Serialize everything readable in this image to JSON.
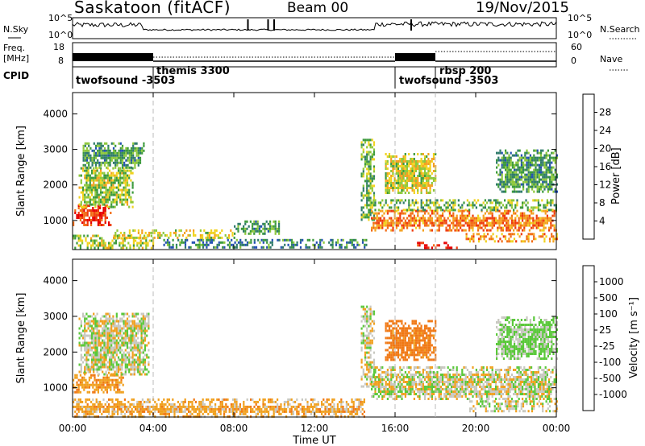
{
  "header": {
    "station": "Saskatoon (fitACF)",
    "beam": "Beam 00",
    "date": "19/Nov/2015"
  },
  "side_labels": {
    "nsky": "N.Sky",
    "freq": "Freq.",
    "freq_unit": "[MHz]",
    "cpid": "CPID",
    "nsearch": "N.Search",
    "nave": "Nave"
  },
  "noise_axis": {
    "left_top": "10^5",
    "left_bottom": "10^0",
    "right_top": "10^5",
    "right_bottom": "10^0"
  },
  "freq_axis": {
    "left_top": "18",
    "left_bottom": "8",
    "right_top": "60",
    "right_bottom": "0"
  },
  "modes": [
    {
      "label": "twofsound -3503",
      "start_h": 0
    },
    {
      "label": "themis 3300",
      "start_h": 4
    },
    {
      "label": "twofsound -3503",
      "start_h": 16
    },
    {
      "label": "rbsp 200",
      "start_h": 18
    }
  ],
  "x_axis": {
    "label": "Time UT",
    "ticks": [
      "00:00",
      "04:00",
      "08:00",
      "12:00",
      "16:00",
      "20:00",
      "00:00"
    ]
  },
  "power_panel": {
    "ylabel": "Slant Range [km]",
    "yticks": [
      "4000",
      "3000",
      "2000",
      "1000"
    ],
    "colorbar_label": "Power [dB]",
    "colorbar_ticks": [
      "28",
      "24",
      "20",
      "16",
      "12",
      "8",
      "4"
    ],
    "colors": [
      "#0a14e6",
      "#2350b4",
      "#2f7a6a",
      "#3c9a3c",
      "#8ec83a",
      "#f0d21e",
      "#f4a01e",
      "#f26c14",
      "#ee3a0c",
      "#e60000"
    ]
  },
  "velocity_panel": {
    "ylabel": "Slant Range [km]",
    "yticks": [
      "4000",
      "3000",
      "2000",
      "1000"
    ],
    "colorbar_label": "Velocity [m s⁻¹]",
    "colorbar_ticks": [
      "1000",
      "500",
      "100",
      "25",
      "-25",
      "-100",
      "-500",
      "-1000"
    ],
    "colors": [
      "#1e32b4",
      "#2f6e8a",
      "#329650",
      "#5ac83a",
      "#c8c8c0",
      "#c8c8c0",
      "#f0a01e",
      "#f07814",
      "#ee5010",
      "#e60000"
    ]
  },
  "chart_data": [
    {
      "type": "heatmap",
      "title": "Power",
      "xlabel": "Time UT",
      "ylabel": "Slant Range [km]",
      "xlim_hours": [
        0,
        24
      ],
      "ylim_km": [
        180,
        4600
      ],
      "zlabel": "Power [dB]",
      "zlim": [
        0,
        30
      ],
      "regions": [
        {
          "t0": 0.0,
          "t1": 1.9,
          "r0": 850,
          "r1": 1450,
          "z": 26
        },
        {
          "t0": 0.3,
          "t1": 3.0,
          "r0": 1400,
          "r1": 2500,
          "z": 14
        },
        {
          "t0": 0.5,
          "t1": 3.5,
          "r0": 2500,
          "r1": 3200,
          "z": 10
        },
        {
          "t0": 0.0,
          "t1": 4.0,
          "r0": 200,
          "r1": 600,
          "z": 14
        },
        {
          "t0": 2.0,
          "t1": 8.0,
          "r0": 480,
          "r1": 750,
          "z": 16
        },
        {
          "t0": 4.5,
          "t1": 14.6,
          "r0": 220,
          "r1": 480,
          "z": 8
        },
        {
          "t0": 8.0,
          "t1": 10.2,
          "r0": 600,
          "r1": 1000,
          "z": 10
        },
        {
          "t0": 14.3,
          "t1": 15.0,
          "r0": 1000,
          "r1": 3300,
          "z": 12
        },
        {
          "t0": 14.8,
          "t1": 24.0,
          "r0": 700,
          "r1": 1300,
          "z": 22
        },
        {
          "t0": 14.8,
          "t1": 24.0,
          "r0": 1300,
          "r1": 1600,
          "z": 12
        },
        {
          "t0": 15.5,
          "t1": 18.0,
          "r0": 1800,
          "r1": 2900,
          "z": 16
        },
        {
          "t0": 17.0,
          "t1": 19.2,
          "r0": 250,
          "r1": 400,
          "z": 28
        },
        {
          "t0": 19.5,
          "t1": 24.0,
          "r0": 400,
          "r1": 650,
          "z": 20
        },
        {
          "t0": 21.0,
          "t1": 24.0,
          "r0": 1800,
          "r1": 3000,
          "z": 10
        }
      ]
    },
    {
      "type": "heatmap",
      "title": "Velocity",
      "xlabel": "Time UT",
      "ylabel": "Slant Range [km]",
      "xlim_hours": [
        0,
        24
      ],
      "ylim_km": [
        180,
        4600
      ],
      "zlabel": "Velocity [m s⁻¹]",
      "zlim": [
        -1000,
        1000
      ],
      "regions": [
        {
          "t0": 0.0,
          "t1": 2.5,
          "r0": 850,
          "r1": 1450,
          "z": -80
        },
        {
          "t0": 0.3,
          "t1": 3.8,
          "r0": 1400,
          "r1": 3100,
          "z": 0
        },
        {
          "t0": 0.0,
          "t1": 14.5,
          "r0": 200,
          "r1": 700,
          "z": -60
        },
        {
          "t0": 14.3,
          "t1": 15.0,
          "r0": 1000,
          "r1": 3300,
          "z": 0
        },
        {
          "t0": 14.8,
          "t1": 24.0,
          "r0": 700,
          "r1": 1600,
          "z": 0
        },
        {
          "t0": 15.5,
          "t1": 18.0,
          "r0": 1800,
          "r1": 2900,
          "z": -150
        },
        {
          "t0": 19.5,
          "t1": 24.0,
          "r0": 350,
          "r1": 650,
          "z": 0
        },
        {
          "t0": 21.0,
          "t1": 24.0,
          "r0": 1800,
          "r1": 3000,
          "z": 40
        }
      ]
    }
  ]
}
